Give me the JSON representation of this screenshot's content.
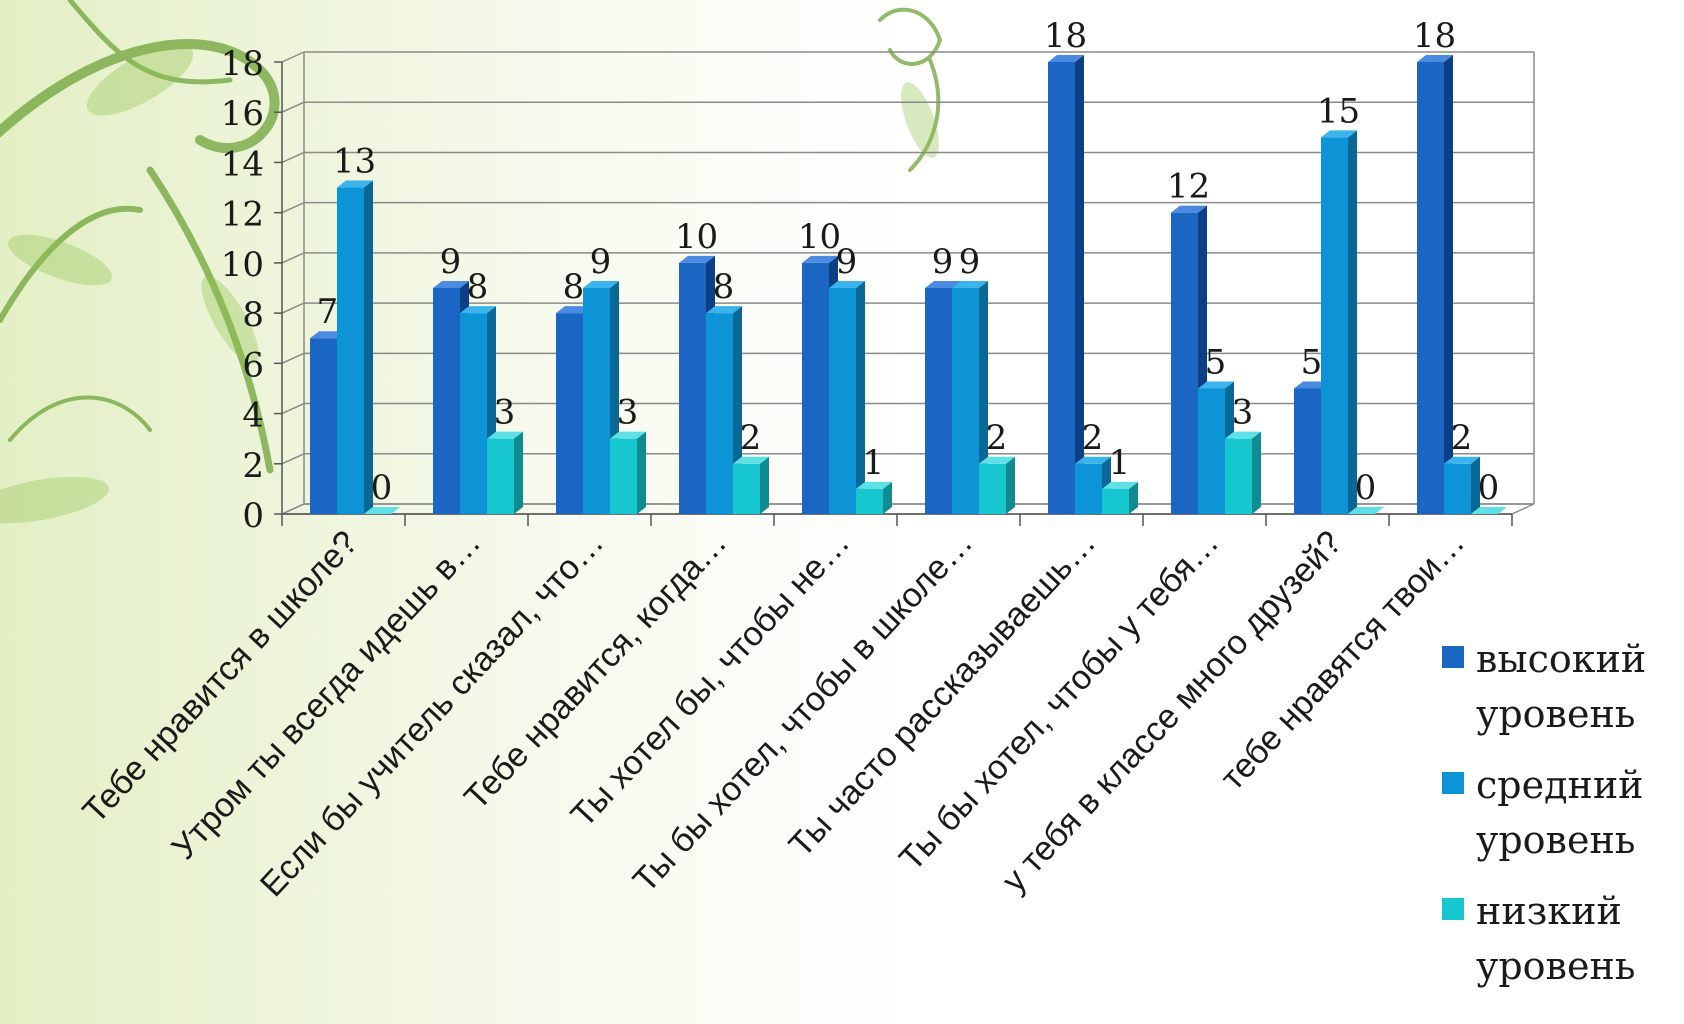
{
  "chart_data": {
    "type": "bar",
    "categories": [
      "Тебе нравится в школе?",
      "Утром ты всегда идешь в…",
      "Если бы учитель сказал, что…",
      "Тебе нравится, когда…",
      "Ты хотел бы, чтобы не…",
      "Ты бы хотел, чтобы в школе…",
      "Ты часто рассказываешь…",
      "Ты бы хотел, чтобы у тебя…",
      "у тебя в классе много друзей?",
      "тебе нравятся твои…"
    ],
    "series": [
      {
        "name": "высокий уровень",
        "values": [
          7,
          9,
          8,
          10,
          10,
          9,
          18,
          12,
          5,
          18
        ]
      },
      {
        "name": "средний уровень",
        "values": [
          13,
          8,
          9,
          8,
          9,
          9,
          2,
          5,
          15,
          2
        ]
      },
      {
        "name": "низкий уровень",
        "values": [
          0,
          3,
          3,
          2,
          1,
          2,
          1,
          3,
          0,
          0
        ]
      }
    ],
    "ylim": [
      0,
      18
    ],
    "yticks": [
      "0",
      "2",
      "4",
      "6",
      "8",
      "10",
      "12",
      "14",
      "16",
      "18"
    ],
    "grid": true,
    "legend_position": "right",
    "title": "",
    "xlabel": "",
    "ylabel": ""
  },
  "colors": {
    "series": [
      "#1a66c2",
      "#0d94d6",
      "#17c7cf"
    ],
    "series_dark": [
      "#0d3f86",
      "#0a6896",
      "#0f8b92"
    ],
    "series_top": [
      "#4a8ae0",
      "#3ab4ea",
      "#5fe0e6"
    ],
    "background_leaf": "#6fa33a"
  }
}
